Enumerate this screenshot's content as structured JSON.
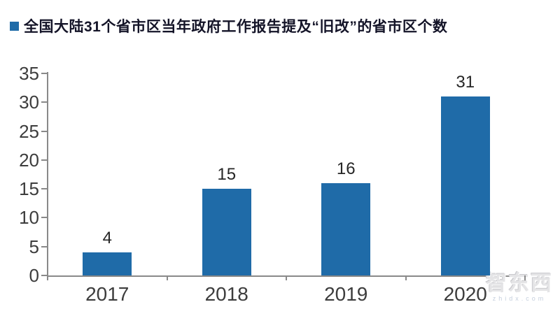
{
  "page": {
    "background": "#ffffff"
  },
  "legend": {
    "marker_color": "#1f6ba8",
    "label": "全国大陆31个省市区当年政府工作报告提及“旧改”的省市区个数"
  },
  "watermark": {
    "brand": "智东西",
    "site": "zhidx.com"
  },
  "chart_data": {
    "type": "bar",
    "categories": [
      "2017",
      "2018",
      "2019",
      "2020"
    ],
    "values": [
      4,
      15,
      16,
      31
    ],
    "data_labels": [
      "4",
      "15",
      "16",
      "31"
    ],
    "series_name": "全国大陆31个省市区当年政府工作报告提及“旧改”的省市区个数",
    "title": "",
    "xlabel": "",
    "ylabel": "",
    "ylim": [
      0,
      35
    ],
    "yticks": [
      0,
      5,
      10,
      15,
      20,
      25,
      30,
      35
    ],
    "bar_color": "#1f6ba8",
    "axis_color": "#898989",
    "tick_label_color": "#3d3d3d",
    "grid": false,
    "legend_position": "top-left"
  }
}
